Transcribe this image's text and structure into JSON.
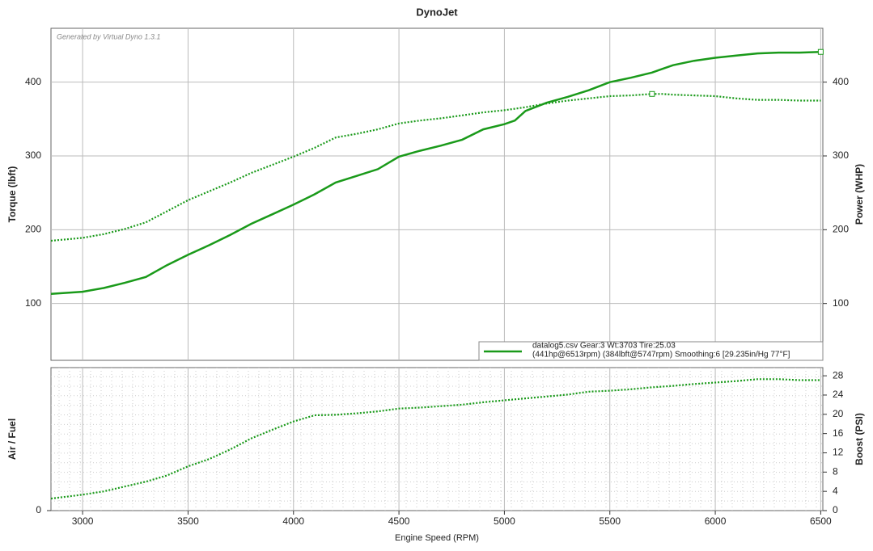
{
  "chart_data": [
    {
      "type": "line",
      "title": "DynoJet",
      "annotation": "Generated by Virtual Dyno 1.3.1",
      "ylabel": "Torque (lbft)",
      "y2label": "Power (WHP)",
      "legend_note": "(441hp@6513rpm) (384lbft@5747rpm) Smoothing:6 [29.235in/Hg 77°F]",
      "x": [
        2850,
        3000,
        3100,
        3200,
        3300,
        3400,
        3500,
        3600,
        3700,
        3800,
        3900,
        4000,
        4100,
        4200,
        4300,
        4400,
        4500,
        4600,
        4700,
        4800,
        4900,
        5000,
        5050,
        5100,
        5200,
        5300,
        5400,
        5500,
        5600,
        5700,
        5750,
        5800,
        5900,
        6000,
        6100,
        6200,
        6300,
        6400,
        6500
      ],
      "xlim": [
        2850,
        6510
      ],
      "xticks": [
        3000,
        3500,
        4000,
        4500,
        5000,
        5500,
        6000,
        6500
      ],
      "ylim": [
        23,
        473
      ],
      "yticks": [
        100,
        200,
        300,
        400
      ],
      "y2lim": [
        23,
        473
      ],
      "y2ticks": [
        100,
        200,
        300,
        400
      ],
      "grid": true,
      "series": [
        {
          "name": "datalog5.csv Gear:3 Wt:3703 Tire:25.03",
          "color": "#1a9a1a",
          "axis": "y2",
          "style": "solid",
          "values": [
            113,
            116,
            121,
            128,
            136,
            152,
            166,
            179,
            193,
            208,
            221,
            234,
            248,
            264,
            273,
            282,
            299,
            307,
            314,
            322,
            336,
            343,
            348,
            361,
            372,
            380,
            389,
            400,
            406,
            413,
            418,
            423,
            429,
            433,
            436,
            439,
            440,
            440,
            441
          ]
        },
        {
          "color": "#1a9a1a",
          "style": "dotted",
          "values": [
            185,
            189,
            194,
            201,
            210,
            225,
            240,
            252,
            264,
            277,
            288,
            299,
            311,
            325,
            330,
            336,
            344,
            348,
            351,
            355,
            359,
            362,
            364,
            366,
            371,
            375,
            378,
            381,
            382,
            384,
            384,
            383,
            382,
            381,
            378,
            376,
            376,
            375,
            375
          ]
        }
      ]
    },
    {
      "type": "line",
      "xlabel": "Engine Speed (RPM)",
      "ylabel": "Air / Fuel",
      "y2label": "Boost (PSI)",
      "x": [
        2850,
        3000,
        3100,
        3200,
        3300,
        3400,
        3500,
        3600,
        3700,
        3800,
        3900,
        4000,
        4100,
        4200,
        4300,
        4400,
        4500,
        4600,
        4700,
        4800,
        4900,
        5000,
        5100,
        5200,
        5300,
        5400,
        5500,
        5600,
        5700,
        5800,
        5900,
        6000,
        6100,
        6200,
        6300,
        6400,
        6500
      ],
      "xlim": [
        2850,
        6510
      ],
      "xticks": [
        3000,
        3500,
        4000,
        4500,
        5000,
        5500,
        6000,
        6500
      ],
      "ylim": [
        0,
        29.7
      ],
      "yticks": [
        0
      ],
      "y2lim": [
        0,
        29.7
      ],
      "y2ticks": [
        0,
        4,
        8,
        12,
        16,
        20,
        24,
        28
      ],
      "grid": true,
      "series": [
        {
          "color": "#1a9a1a",
          "axis": "y2",
          "style": "dotted",
          "values": [
            2.5,
            3.3,
            4.0,
            5.0,
            6.0,
            7.3,
            9.2,
            10.7,
            12.7,
            15.0,
            16.8,
            18.5,
            19.8,
            19.9,
            20.2,
            20.6,
            21.2,
            21.4,
            21.7,
            22.0,
            22.5,
            22.9,
            23.3,
            23.7,
            24.1,
            24.7,
            24.9,
            25.2,
            25.6,
            25.9,
            26.3,
            26.6,
            26.9,
            27.3,
            27.3,
            27.1,
            27.1
          ]
        }
      ]
    }
  ]
}
